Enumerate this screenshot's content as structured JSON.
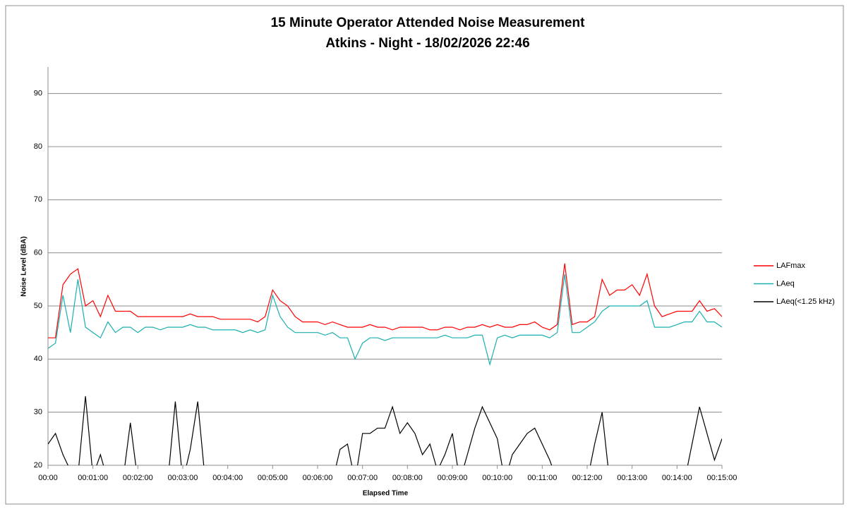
{
  "chart_data": {
    "type": "line",
    "title": "15 Minute Operator Attended Noise Measurement",
    "subtitle": "Atkins - Night - 18/02/2026 22:46",
    "y_label": "Noise Level (dBA)",
    "x_label": "Elapsed Time",
    "grid": true,
    "legend": "right",
    "ylim": [
      20,
      95
    ],
    "yticks": [
      20,
      30,
      40,
      50,
      60,
      70,
      80,
      90
    ],
    "xlim": [
      0,
      900
    ],
    "xticks": [
      {
        "value": 0,
        "label": "00:00"
      },
      {
        "value": 60,
        "label": "00:01:00"
      },
      {
        "value": 120,
        "label": "00:02:00"
      },
      {
        "value": 180,
        "label": "00:03:00"
      },
      {
        "value": 240,
        "label": "00:04:00"
      },
      {
        "value": 300,
        "label": "00:05:00"
      },
      {
        "value": 360,
        "label": "00:06:00"
      },
      {
        "value": 420,
        "label": "00:07:00"
      },
      {
        "value": 480,
        "label": "00:08:00"
      },
      {
        "value": 540,
        "label": "00:09:00"
      },
      {
        "value": 600,
        "label": "00:10:00"
      },
      {
        "value": 660,
        "label": "00:11:00"
      },
      {
        "value": 720,
        "label": "00:12:00"
      },
      {
        "value": 780,
        "label": "00:13:00"
      },
      {
        "value": 840,
        "label": "00:14:00"
      },
      {
        "value": 900,
        "label": "00:15:00"
      }
    ],
    "x": [
      0,
      10,
      20,
      30,
      40,
      50,
      60,
      70,
      80,
      90,
      100,
      110,
      120,
      130,
      140,
      150,
      160,
      170,
      180,
      190,
      200,
      210,
      220,
      230,
      240,
      250,
      260,
      270,
      280,
      290,
      300,
      310,
      320,
      330,
      340,
      350,
      360,
      370,
      380,
      390,
      400,
      410,
      420,
      430,
      440,
      450,
      460,
      470,
      480,
      490,
      500,
      510,
      520,
      530,
      540,
      550,
      560,
      570,
      580,
      590,
      600,
      610,
      620,
      630,
      640,
      650,
      660,
      670,
      680,
      690,
      700,
      710,
      720,
      730,
      740,
      750,
      760,
      770,
      780,
      790,
      800,
      810,
      820,
      830,
      840,
      850,
      860,
      870,
      880,
      890,
      900
    ],
    "series": [
      {
        "name": "LAFmax",
        "color": "#ff0000",
        "values": [
          44,
          44,
          54,
          56,
          57,
          50,
          51,
          48,
          52,
          49,
          49,
          49,
          48,
          48,
          48,
          48,
          48,
          48,
          48,
          48.5,
          48,
          48,
          48,
          47.5,
          47.5,
          47.5,
          47.5,
          47.5,
          47,
          48,
          53,
          51,
          50,
          48,
          47,
          47,
          47,
          46.5,
          47,
          46.5,
          46,
          46,
          46,
          46.5,
          46,
          46,
          45.5,
          46,
          46,
          46,
          46,
          45.5,
          45.5,
          46,
          46,
          45.5,
          46,
          46,
          46.5,
          46,
          46.5,
          46,
          46,
          46.5,
          46.5,
          47,
          46,
          45.5,
          46.5,
          58,
          46.5,
          47,
          47,
          48,
          55,
          52,
          53,
          53,
          54,
          52,
          56,
          50,
          48,
          48.5,
          49,
          49,
          49,
          51,
          49,
          49.5,
          48
        ]
      },
      {
        "name": "LAeq",
        "color": "#1aafaf",
        "values": [
          42,
          43,
          52,
          45,
          55,
          46,
          45,
          44,
          47,
          45,
          46,
          46,
          45,
          46,
          46,
          45.5,
          46,
          46,
          46,
          46.5,
          46,
          46,
          45.5,
          45.5,
          45.5,
          45.5,
          45,
          45.5,
          45,
          45.5,
          52,
          48,
          46,
          45,
          45,
          45,
          45,
          44.5,
          45,
          44,
          44,
          40,
          43,
          44,
          44,
          43.5,
          44,
          44,
          44,
          44,
          44,
          44,
          44,
          44.5,
          44,
          44,
          44,
          44.5,
          44.5,
          39,
          44,
          44.5,
          44,
          44.5,
          44.5,
          44.5,
          44.5,
          44,
          45,
          56,
          45,
          45,
          46,
          47,
          49,
          50,
          50,
          50,
          50,
          50,
          51,
          46,
          46,
          46,
          46.5,
          47,
          47,
          49,
          47,
          47,
          46
        ]
      },
      {
        "name": "LAeq(<1.25 kHz)",
        "color": "#000000",
        "values": [
          24,
          26,
          22,
          19,
          18,
          33,
          18,
          22,
          17,
          18,
          17,
          28,
          17,
          18,
          19,
          17,
          17,
          32,
          17,
          23,
          32,
          17,
          17,
          17,
          19,
          17,
          17,
          17,
          17,
          17,
          17,
          17,
          17,
          17,
          17,
          17,
          17,
          17,
          17,
          23,
          24,
          17,
          26,
          26,
          27,
          27,
          31,
          26,
          28,
          26,
          22,
          24,
          19,
          22,
          26,
          17,
          22,
          27,
          31,
          28,
          25,
          17,
          22,
          24,
          26,
          27,
          24,
          21,
          17,
          17,
          17,
          17,
          17,
          24,
          30,
          17,
          17,
          17,
          17,
          17,
          17,
          17,
          17,
          17,
          17,
          17,
          24,
          31,
          26,
          21,
          25
        ]
      }
    ]
  }
}
